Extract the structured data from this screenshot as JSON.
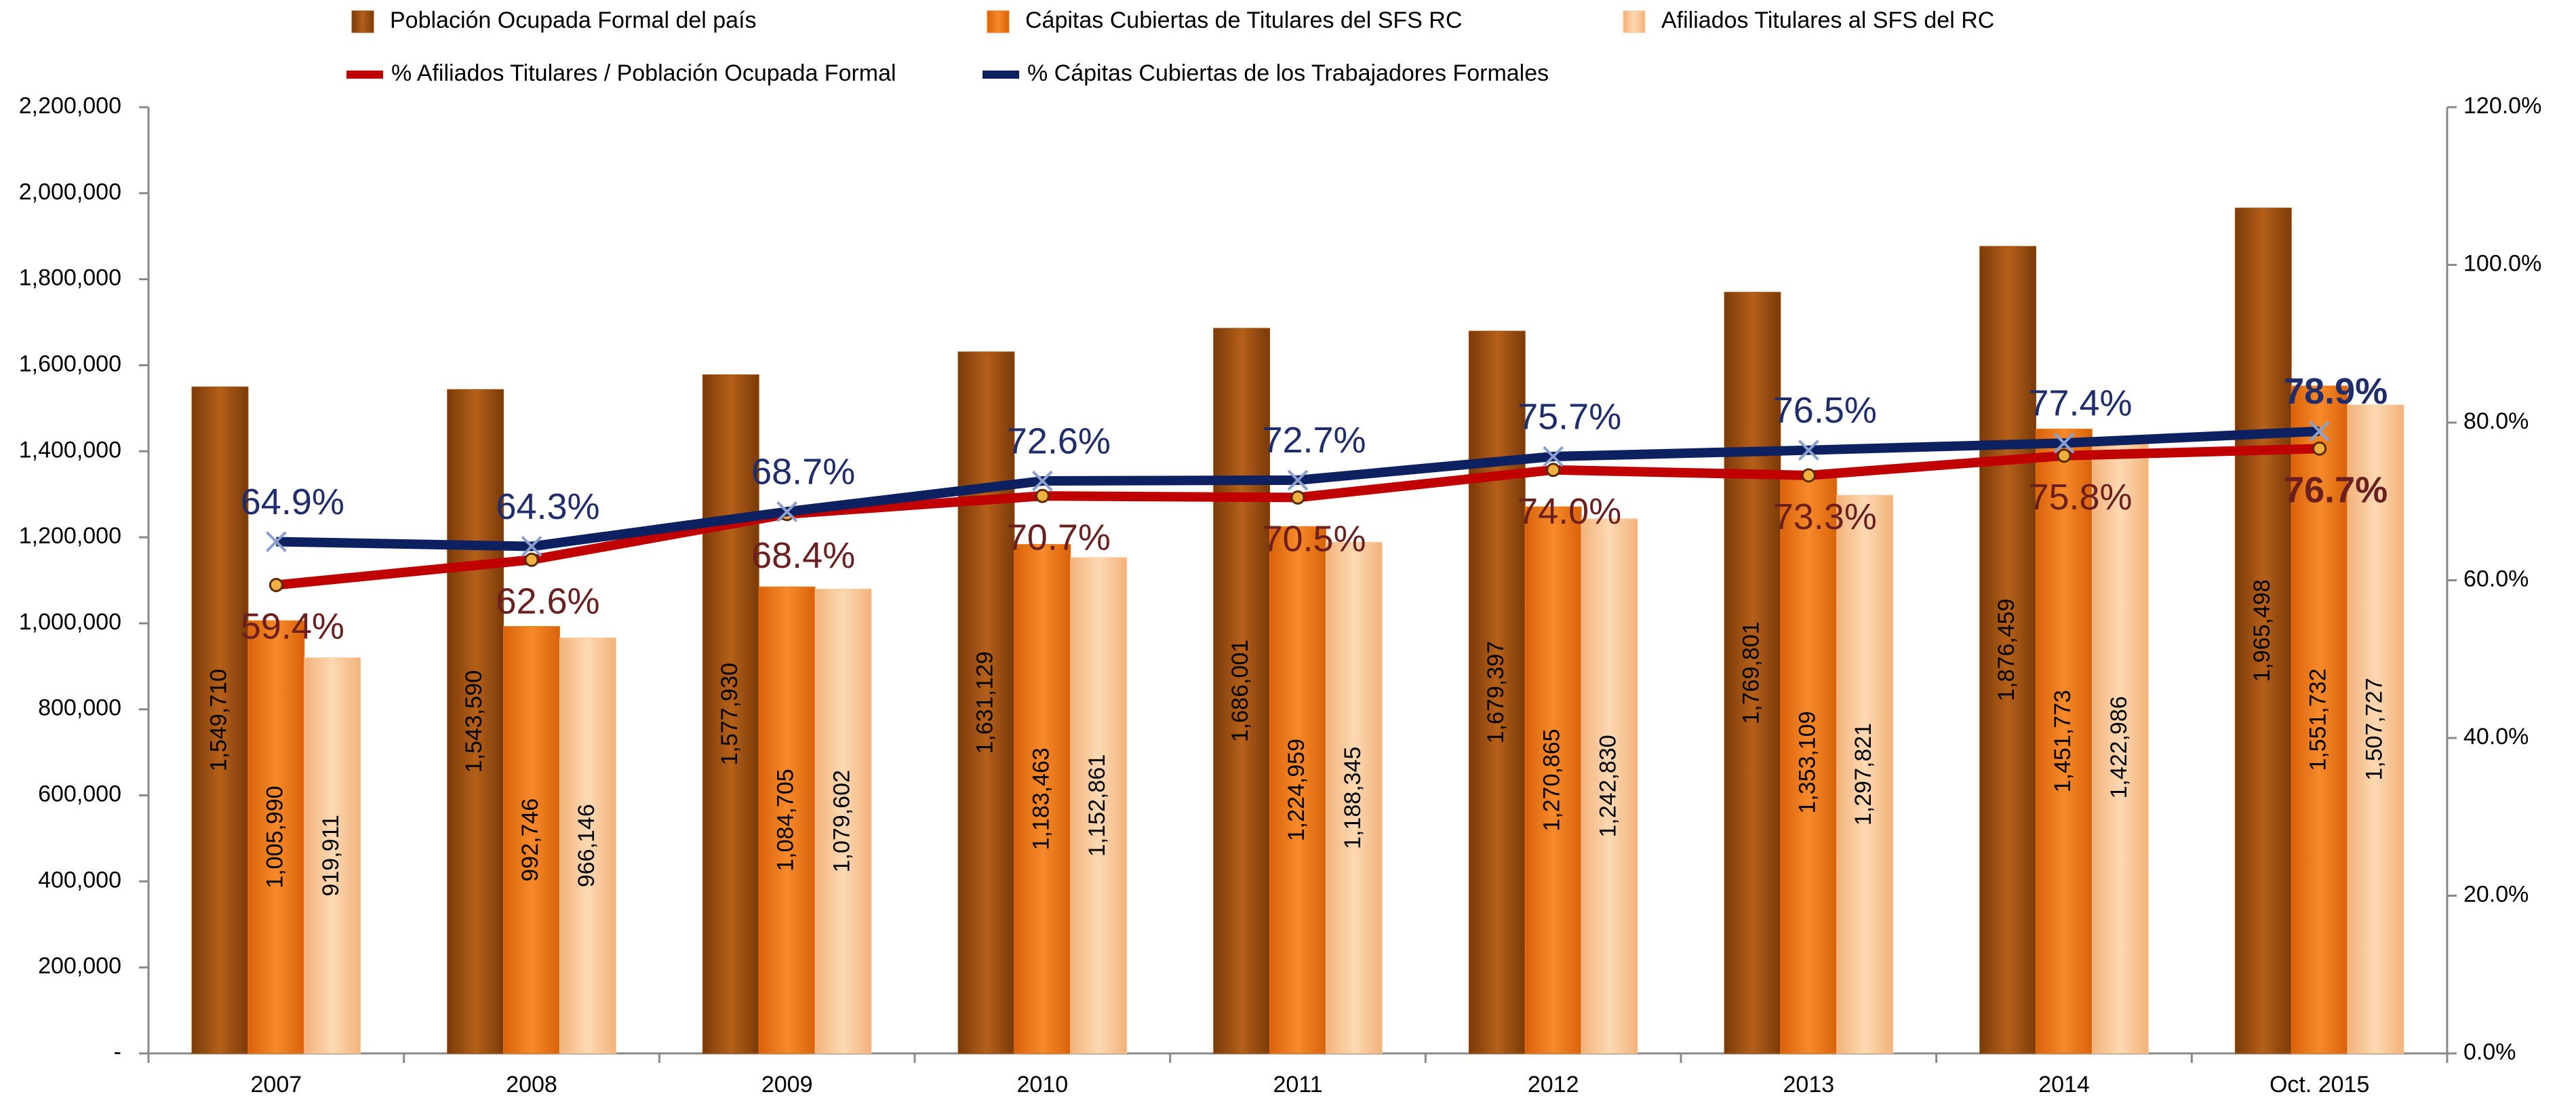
{
  "chart_data": {
    "type": "bar",
    "categories": [
      "2007",
      "2008",
      "2009",
      "2010",
      "2011",
      "2012",
      "2013",
      "2014",
      "Oct. 2015"
    ],
    "series": [
      {
        "name": "Población Ocupada Formal del país",
        "color": "#a0500f",
        "values": [
          1549710,
          1543590,
          1577930,
          1631129,
          1686001,
          1679397,
          1769801,
          1876459,
          1965498
        ],
        "value_labels": [
          "1,549,710",
          "1,543,590",
          "1,577,930",
          "1,631,129",
          "1,686,001",
          "1,679,397",
          "1,769,801",
          "1,876,459",
          "1,965,498"
        ]
      },
      {
        "name": "Cápitas Cubiertas de Titulares del SFS RC",
        "color": "#f07a14",
        "values": [
          1005990,
          992746,
          1084705,
          1183463,
          1224959,
          1270865,
          1353109,
          1451773,
          1551732
        ],
        "value_labels": [
          "1,005,990",
          "992,746",
          "1,084,705",
          "1,183,463",
          "1,224,959",
          "1,270,865",
          "1,353,109",
          "1,451,773",
          "1,551,732"
        ]
      },
      {
        "name": "Afiliados Titulares al SFS del RC",
        "color": "#fcc999",
        "values": [
          919911,
          966146,
          1079602,
          1152861,
          1188345,
          1242830,
          1297821,
          1422986,
          1507727
        ],
        "value_labels": [
          "919,911",
          "966,146",
          "1,079,602",
          "1,152,861",
          "1,188,345",
          "1,242,830",
          "1,297,821",
          "1,422,986",
          "1,507,727"
        ]
      },
      {
        "name": "% Afiliados Titulares / Población Ocupada Formal",
        "color": "#c00000",
        "type": "line",
        "axis": "y2",
        "values": [
          59.4,
          62.6,
          68.4,
          70.7,
          70.5,
          74.0,
          73.3,
          75.8,
          76.7
        ],
        "value_labels": [
          "59.4%",
          "62.6%",
          "68.4%",
          "70.7%",
          "70.5%",
          "74.0%",
          "73.3%",
          "75.8%",
          "76.7%"
        ]
      },
      {
        "name": "% Cápitas Cubiertas de los Trabajadores Formales",
        "color": "#0d2060",
        "type": "line",
        "axis": "y2",
        "values": [
          64.9,
          64.3,
          68.7,
          72.6,
          72.7,
          75.7,
          76.5,
          77.4,
          78.9
        ],
        "value_labels": [
          "64.9%",
          "64.3%",
          "68.7%",
          "72.6%",
          "72.7%",
          "75.7%",
          "76.5%",
          "77.4%",
          "78.9%"
        ]
      }
    ],
    "ylim": [
      0,
      2200000
    ],
    "yticks": [
      {
        "value": 0,
        "label": "-"
      },
      {
        "value": 200000,
        "label": "200,000"
      },
      {
        "value": 400000,
        "label": "400,000"
      },
      {
        "value": 600000,
        "label": "600,000"
      },
      {
        "value": 800000,
        "label": "800,000"
      },
      {
        "value": 1000000,
        "label": "1,000,000"
      },
      {
        "value": 1200000,
        "label": "1,200,000"
      },
      {
        "value": 1400000,
        "label": "1,400,000"
      },
      {
        "value": 1600000,
        "label": "1,600,000"
      },
      {
        "value": 1800000,
        "label": "1,800,000"
      },
      {
        "value": 2000000,
        "label": "2,000,000"
      },
      {
        "value": 2200000,
        "label": "2,200,000"
      }
    ],
    "y2lim": [
      0,
      120
    ],
    "y2ticks": [
      {
        "value": 0,
        "label": "0.0%"
      },
      {
        "value": 20,
        "label": "20.0%"
      },
      {
        "value": 40,
        "label": "40.0%"
      },
      {
        "value": 60,
        "label": "60.0%"
      },
      {
        "value": 80,
        "label": "80.0%"
      },
      {
        "value": 100,
        "label": "100.0%"
      },
      {
        "value": 120,
        "label": "120.0%"
      }
    ],
    "grid": false,
    "legend": "top"
  }
}
